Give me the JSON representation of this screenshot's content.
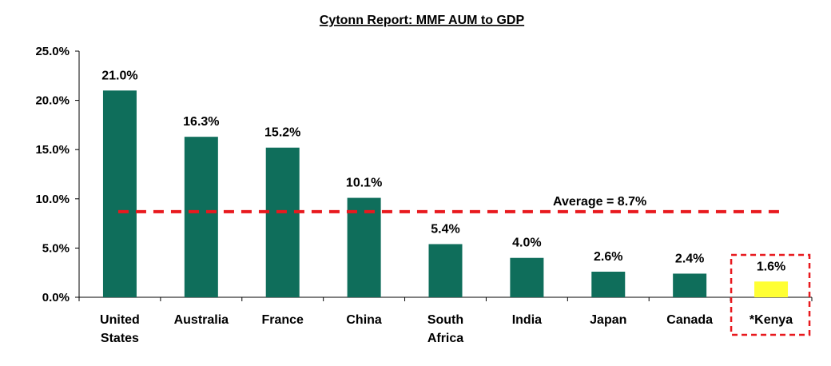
{
  "chart_data": {
    "type": "bar",
    "title": "Cytonn Report: MMF AUM to GDP",
    "categories": [
      [
        "United",
        "States"
      ],
      [
        "Australia"
      ],
      [
        "France"
      ],
      [
        "China"
      ],
      [
        "South",
        "Africa"
      ],
      [
        "India"
      ],
      [
        "Japan"
      ],
      [
        "Canada"
      ],
      [
        "*Kenya"
      ]
    ],
    "values": [
      21.0,
      16.3,
      15.2,
      10.1,
      5.4,
      4.0,
      2.6,
      2.4,
      1.6
    ],
    "data_labels": [
      "21.0%",
      "16.3%",
      "15.2%",
      "10.1%",
      "5.4%",
      "4.0%",
      "2.6%",
      "2.4%",
      "1.6%"
    ],
    "highlighted_category_index": 8,
    "ylim": [
      0,
      25
    ],
    "yticks": [
      0,
      5,
      10,
      15,
      20,
      25
    ],
    "ytick_labels": [
      "0.0%",
      "5.0%",
      "10.0%",
      "15.0%",
      "20.0%",
      "25.0%"
    ],
    "reference_line": {
      "value": 8.7,
      "label": "Average = 8.7%"
    },
    "grid": false,
    "legend": "none",
    "colors": {
      "bar": "#0f6e5b",
      "highlight_bar": "#ffff33",
      "average_line": "#e8191e",
      "highlight_box": "#e8191e"
    }
  }
}
